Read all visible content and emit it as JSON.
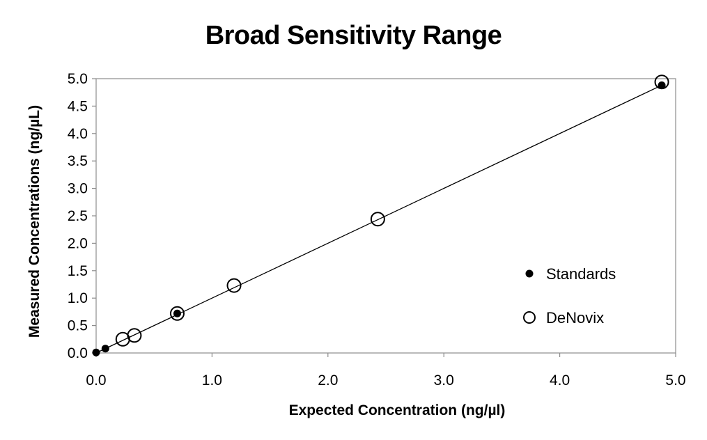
{
  "chart_data": {
    "type": "scatter",
    "title": "Broad Sensitivity Range",
    "xlabel": "Expected Concentration (ng/µl)",
    "ylabel": "Measured Concentrations (ng/µL)",
    "xlim": [
      0,
      5
    ],
    "ylim": [
      0,
      5
    ],
    "x_ticks": [
      "0.0",
      "1.0",
      "2.0",
      "3.0",
      "4.0",
      "5.0"
    ],
    "y_ticks": [
      "0.0",
      "0.5",
      "1.0",
      "1.5",
      "2.0",
      "2.5",
      "3.0",
      "3.5",
      "4.0",
      "4.5",
      "5.0"
    ],
    "grid": false,
    "legend_position": "right",
    "trendline": {
      "x": [
        0,
        4.9
      ],
      "y": [
        0,
        4.9
      ]
    },
    "series": [
      {
        "name": "Standards",
        "marker": "filled-circle",
        "color": "#000000",
        "x": [
          0.0,
          0.08,
          0.7,
          4.88
        ],
        "y": [
          0.01,
          0.08,
          0.72,
          4.88
        ]
      },
      {
        "name": "DeNovix",
        "marker": "open-circle",
        "color": "#000000",
        "x": [
          0.23,
          0.33,
          0.7,
          1.19,
          2.43,
          4.88
        ],
        "y": [
          0.25,
          0.32,
          0.72,
          1.23,
          2.44,
          4.94
        ]
      }
    ]
  }
}
